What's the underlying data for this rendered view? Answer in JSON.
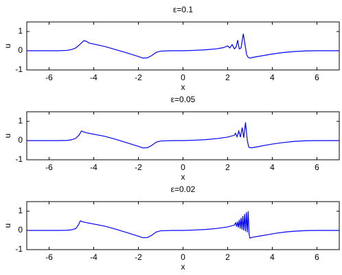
{
  "chart_data": [
    {
      "type": "line",
      "title": "ε=0.1",
      "xlabel": "x",
      "ylabel": "u",
      "xlim": [
        -7,
        7
      ],
      "ylim": [
        -1,
        1.5
      ],
      "xticks": [
        -6,
        -4,
        -2,
        0,
        2,
        4,
        6
      ],
      "yticks": [
        -1,
        0,
        1
      ],
      "color": "#0000ff",
      "x": [
        -7,
        -5.6,
        -5.2,
        -5.0,
        -4.8,
        -4.6,
        -4.45,
        -4.35,
        -4.2,
        -3.5,
        -3.0,
        -2.5,
        -2.0,
        -1.8,
        -1.6,
        -1.4,
        -1.2,
        -1.0,
        -0.5,
        0,
        0.5,
        1.0,
        1.5,
        1.8,
        2.0,
        2.1,
        2.2,
        2.3,
        2.38,
        2.45,
        2.52,
        2.6,
        2.7,
        2.78,
        2.85,
        2.92,
        3.0,
        3.2,
        3.6,
        4.0,
        4.5,
        5.0,
        5.5,
        6.0,
        7
      ],
      "values": [
        0,
        0,
        0.02,
        0.06,
        0.15,
        0.35,
        0.52,
        0.5,
        0.4,
        0.22,
        0.05,
        -0.12,
        -0.3,
        -0.38,
        -0.37,
        -0.25,
        -0.08,
        -0.02,
        0,
        0,
        0.02,
        0.05,
        0.1,
        0.16,
        0.25,
        0.15,
        0.32,
        0.1,
        0.2,
        0.55,
        0.1,
        0.15,
        0.88,
        0.3,
        -0.2,
        -0.35,
        -0.38,
        -0.33,
        -0.25,
        -0.17,
        -0.09,
        -0.04,
        -0.01,
        0,
        0
      ]
    },
    {
      "type": "line",
      "title": "ε=0.05",
      "xlabel": "x",
      "ylabel": "u",
      "xlim": [
        -7,
        7
      ],
      "ylim": [
        -1,
        1.5
      ],
      "xticks": [
        -6,
        -4,
        -2,
        0,
        2,
        4,
        6
      ],
      "yticks": [
        -1,
        0,
        1
      ],
      "color": "#0000ff",
      "x": [
        -7,
        -5.6,
        -5.2,
        -5.0,
        -4.8,
        -4.65,
        -4.55,
        -4.45,
        -4.3,
        -3.5,
        -3.0,
        -2.5,
        -2.0,
        -1.8,
        -1.6,
        -1.4,
        -1.2,
        -1.0,
        -0.5,
        0,
        0.5,
        1.0,
        1.5,
        2.0,
        2.3,
        2.35,
        2.42,
        2.5,
        2.57,
        2.65,
        2.72,
        2.8,
        2.88,
        2.95,
        3.05,
        3.3,
        3.6,
        4.0,
        4.5,
        5.0,
        5.5,
        6.0,
        7
      ],
      "values": [
        0,
        0,
        0.01,
        0.04,
        0.12,
        0.3,
        0.5,
        0.45,
        0.4,
        0.22,
        0.06,
        -0.12,
        -0.3,
        -0.38,
        -0.37,
        -0.25,
        -0.08,
        -0.02,
        0,
        0,
        0.02,
        0.05,
        0.1,
        0.18,
        0.28,
        0.38,
        0.2,
        0.5,
        0.18,
        0.68,
        0.15,
        0.95,
        0.0,
        -0.35,
        -0.38,
        -0.33,
        -0.26,
        -0.18,
        -0.1,
        -0.04,
        -0.01,
        0,
        0
      ]
    },
    {
      "type": "line",
      "title": "ε=0.02",
      "xlabel": "x",
      "ylabel": "u",
      "xlim": [
        -7,
        7
      ],
      "ylim": [
        -1,
        1.5
      ],
      "xticks": [
        -6,
        -4,
        -2,
        0,
        2,
        4,
        6
      ],
      "yticks": [
        -1,
        0,
        1
      ],
      "color": "#0000ff",
      "x": [
        -7,
        -5.6,
        -5.2,
        -5.0,
        -4.8,
        -4.68,
        -4.6,
        -4.5,
        -4.3,
        -3.5,
        -3.0,
        -2.5,
        -2.0,
        -1.8,
        -1.6,
        -1.4,
        -1.2,
        -1.0,
        -0.5,
        0,
        0.5,
        1.0,
        1.5,
        2.0,
        2.3,
        2.36,
        2.4,
        2.44,
        2.48,
        2.52,
        2.56,
        2.6,
        2.64,
        2.68,
        2.72,
        2.76,
        2.8,
        2.84,
        2.88,
        2.92,
        2.96,
        3.0,
        3.1,
        3.4,
        3.8,
        4.2,
        4.6,
        5.0,
        5.5,
        6.0,
        7
      ],
      "values": [
        0,
        0,
        0.01,
        0.03,
        0.1,
        0.3,
        0.5,
        0.45,
        0.4,
        0.22,
        0.06,
        -0.12,
        -0.3,
        -0.38,
        -0.37,
        -0.25,
        -0.08,
        -0.02,
        0,
        0,
        0.02,
        0.05,
        0.1,
        0.18,
        0.28,
        0.4,
        0.2,
        0.45,
        0.15,
        0.55,
        0.1,
        0.65,
        0.05,
        0.75,
        0.0,
        0.85,
        -0.05,
        0.95,
        -0.1,
        1.0,
        -0.2,
        -0.4,
        -0.36,
        -0.3,
        -0.22,
        -0.14,
        -0.08,
        -0.04,
        -0.01,
        0,
        0
      ]
    }
  ]
}
